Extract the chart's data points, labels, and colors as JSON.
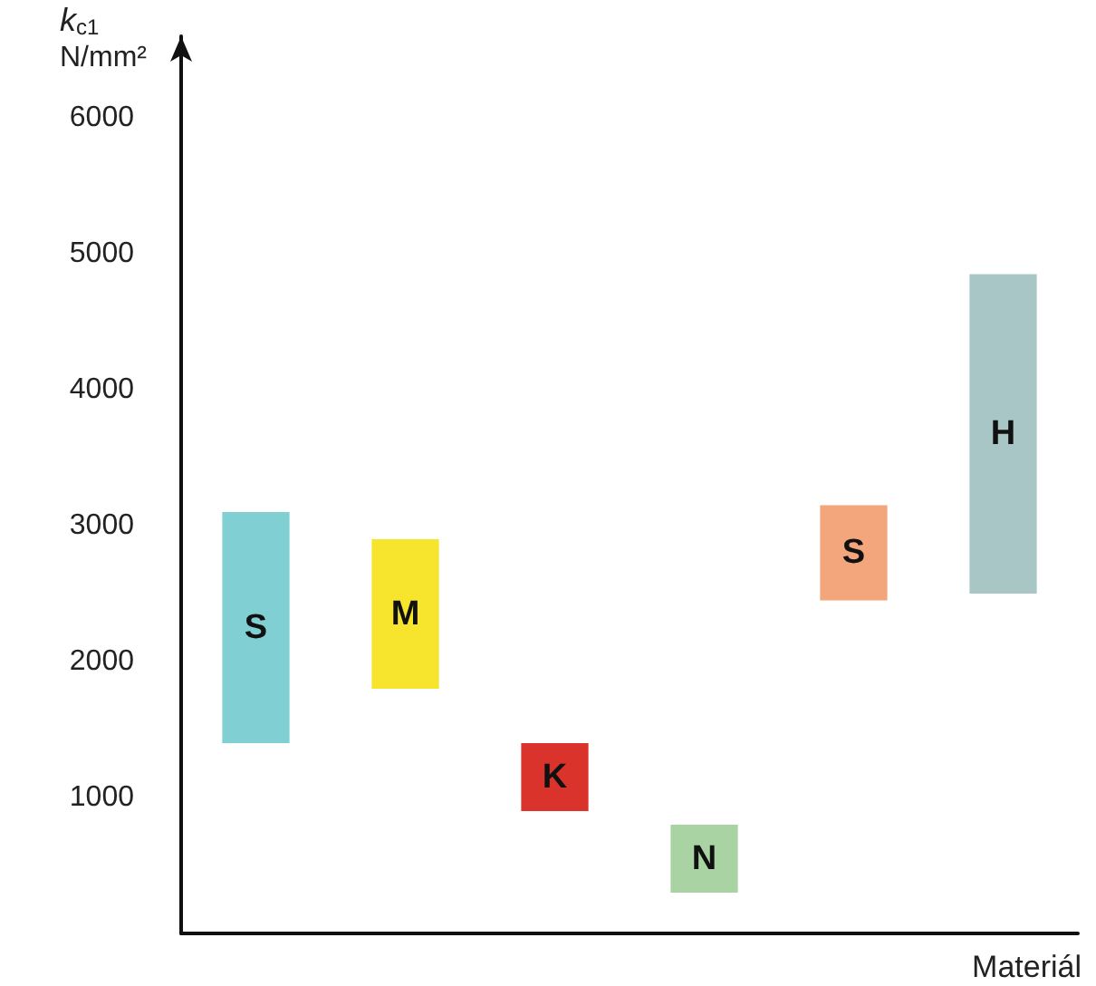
{
  "chart_data": {
    "type": "bar",
    "categories": [
      "S",
      "M",
      "K",
      "N",
      "S",
      "H"
    ],
    "base": [
      1400,
      1800,
      900,
      300,
      2450,
      2500
    ],
    "values": [
      1700,
      1100,
      500,
      500,
      700,
      2350
    ],
    "colors": [
      "#80cfd2",
      "#f6e52c",
      "#d9332b",
      "#a9d3a3",
      "#f3a57b",
      "#a9c6c6"
    ],
    "ylabel": "k$_{c1}$ N/mm²",
    "xlabel": "Materiál",
    "ylim": [
      0,
      6600
    ],
    "yticks": [
      1000,
      2000,
      3000,
      4000,
      5000,
      6000
    ],
    "tick_labels": "y",
    "grid": false
  }
}
